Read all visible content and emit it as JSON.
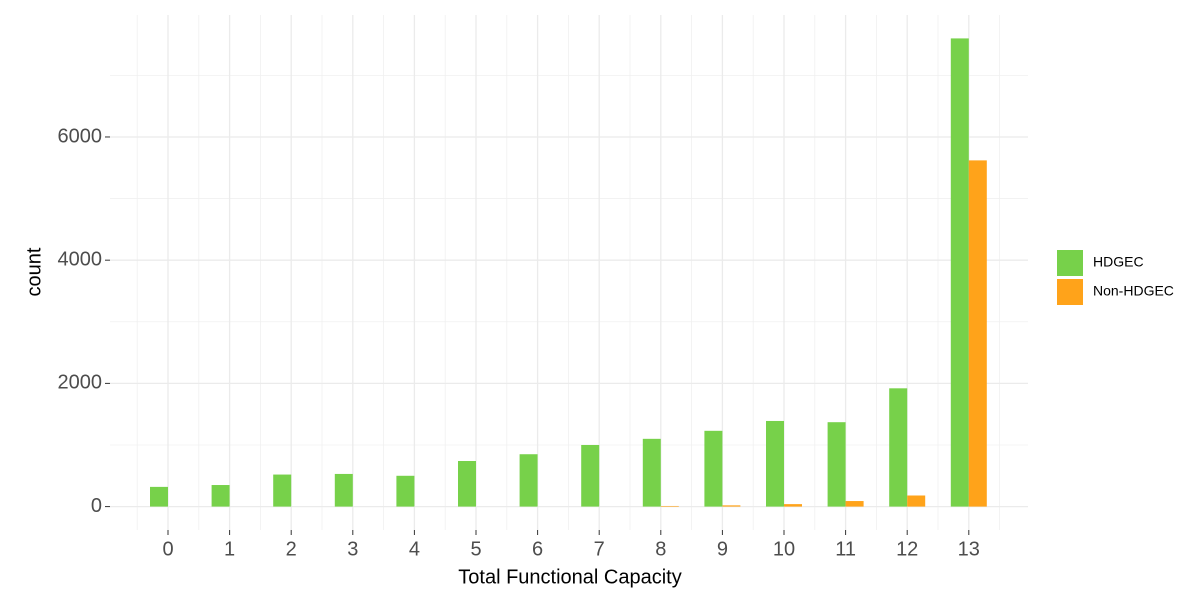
{
  "chart_data": {
    "type": "bar",
    "x_label": "Total Functional Capacity",
    "y_label": "count",
    "categories": [
      "0",
      "1",
      "2",
      "3",
      "4",
      "5",
      "6",
      "7",
      "8",
      "9",
      "10",
      "11",
      "12",
      "13"
    ],
    "series": [
      {
        "name": "HDGEC",
        "color": "#77d14a",
        "values": [
          320,
          350,
          520,
          530,
          500,
          740,
          850,
          1000,
          1100,
          1230,
          1390,
          1370,
          1920,
          7600
        ]
      },
      {
        "name": "Non-HDGEC",
        "color": "#ffa31a",
        "values": [
          0,
          0,
          0,
          0,
          0,
          0,
          0,
          0,
          10,
          20,
          40,
          90,
          180,
          5620
        ]
      }
    ],
    "ylim": [
      -380,
      7980
    ],
    "yticks": [
      0,
      2000,
      4000,
      6000
    ],
    "y_minor_ticks": [
      1000,
      3000,
      5000,
      7000
    ],
    "grid": true,
    "legend": "right"
  }
}
